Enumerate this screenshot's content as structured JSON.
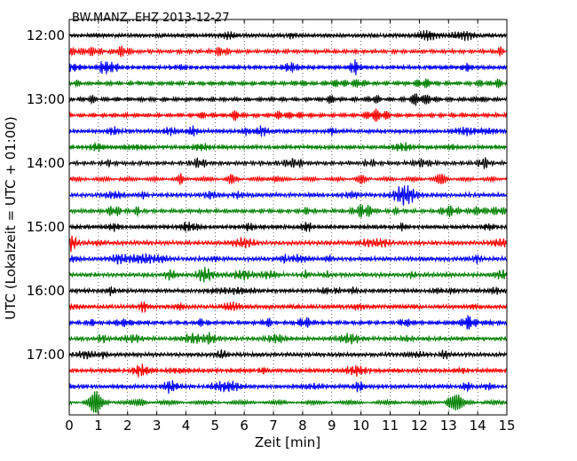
{
  "chart_data": {
    "type": "line",
    "title": "BW.MANZ..EHZ 2013-12-27",
    "xlabel": "Zeit  [min]",
    "ylabel": "UTC (Lokalzeit = UTC + 01:00)",
    "xlim": [
      0,
      15
    ],
    "x_ticks": [
      "0",
      "1",
      "2",
      "3",
      "4",
      "5",
      "6",
      "7",
      "8",
      "9",
      "10",
      "11",
      "12",
      "13",
      "14",
      "15"
    ],
    "y_ticks": [
      "12:00",
      "13:00",
      "14:00",
      "15:00",
      "16:00",
      "17:00"
    ],
    "trace_interval_min": 15,
    "trace_colors": [
      "#000000",
      "#ff0000",
      "#0000ff",
      "#008000"
    ],
    "grid": "dotted vertical at each minute",
    "series": [
      {
        "start": "12:00",
        "color": "#000000"
      },
      {
        "start": "12:15",
        "color": "#ff0000"
      },
      {
        "start": "12:30",
        "color": "#0000ff"
      },
      {
        "start": "12:45",
        "color": "#008000"
      },
      {
        "start": "13:00",
        "color": "#000000"
      },
      {
        "start": "13:15",
        "color": "#ff0000"
      },
      {
        "start": "13:30",
        "color": "#0000ff"
      },
      {
        "start": "13:45",
        "color": "#008000"
      },
      {
        "start": "14:00",
        "color": "#000000"
      },
      {
        "start": "14:15",
        "color": "#ff0000"
      },
      {
        "start": "14:30",
        "color": "#0000ff"
      },
      {
        "start": "14:45",
        "color": "#008000"
      },
      {
        "start": "15:00",
        "color": "#000000"
      },
      {
        "start": "15:15",
        "color": "#ff0000"
      },
      {
        "start": "15:30",
        "color": "#0000ff"
      },
      {
        "start": "15:45",
        "color": "#008000"
      },
      {
        "start": "16:00",
        "color": "#000000"
      },
      {
        "start": "16:15",
        "color": "#ff0000"
      },
      {
        "start": "16:30",
        "color": "#0000ff"
      },
      {
        "start": "16:45",
        "color": "#008000"
      },
      {
        "start": "17:00",
        "color": "#000000"
      },
      {
        "start": "17:15",
        "color": "#ff0000"
      },
      {
        "start": "17:30",
        "color": "#0000ff"
      },
      {
        "start": "17:45",
        "color": "#008000"
      }
    ]
  }
}
